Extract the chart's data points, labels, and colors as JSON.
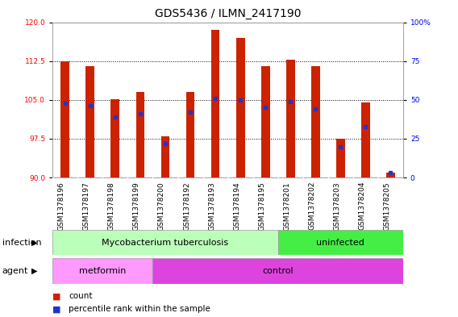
{
  "title": "GDS5436 / ILMN_2417190",
  "samples": [
    "GSM1378196",
    "GSM1378197",
    "GSM1378198",
    "GSM1378199",
    "GSM1378200",
    "GSM1378192",
    "GSM1378193",
    "GSM1378194",
    "GSM1378195",
    "GSM1378201",
    "GSM1378202",
    "GSM1378203",
    "GSM1378204",
    "GSM1378205"
  ],
  "counts": [
    112.5,
    111.5,
    105.2,
    106.5,
    98.0,
    106.5,
    118.5,
    117.0,
    111.5,
    112.8,
    111.5,
    97.5,
    104.5,
    91.0
  ],
  "percentiles": [
    48,
    46,
    39,
    41,
    22,
    42,
    51,
    50,
    45,
    49,
    44,
    20,
    33,
    3
  ],
  "ylim_left": [
    90,
    120
  ],
  "ylim_right": [
    0,
    100
  ],
  "yticks_left": [
    90,
    97.5,
    105,
    112.5,
    120
  ],
  "yticks_right": [
    0,
    25,
    50,
    75,
    100
  ],
  "bar_color": "#cc2200",
  "dot_color": "#2233cc",
  "bg_color": "#ffffff",
  "plot_bg": "#ffffff",
  "infection_tb_color": "#bbffbb",
  "infection_un_color": "#44ee44",
  "agent_met_color": "#ff99ff",
  "agent_ctrl_color": "#dd44dd",
  "xtick_bg_color": "#cccccc",
  "infection_label": "infection",
  "agent_label": "agent",
  "legend_count": "count",
  "legend_percentile": "percentile rank within the sample",
  "bar_width": 0.35,
  "title_fontsize": 10,
  "tick_fontsize": 6.5,
  "annot_fontsize": 8
}
